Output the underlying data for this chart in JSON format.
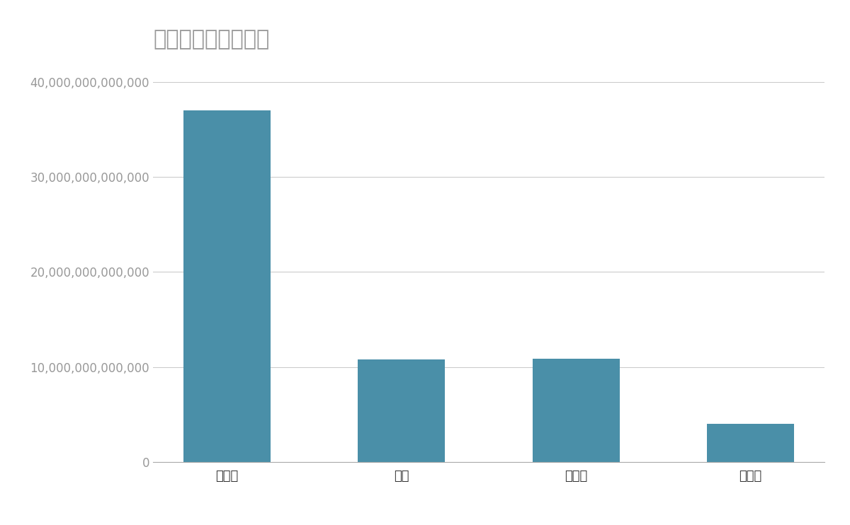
{
  "title": "競合含む年間売上高",
  "categories": [
    "トヨタ",
    "日産",
    "ホンダ",
    "スズキ"
  ],
  "values": [
    37000000000000,
    10800000000000,
    10900000000000,
    4000000000000
  ],
  "bar_color": "#4a8fa8",
  "background_color": "#ffffff",
  "title_color": "#999999",
  "tick_color": "#999999",
  "grid_color": "#cccccc",
  "ylim": [
    0,
    42000000000000
  ],
  "yticks": [
    0,
    10000000000000,
    20000000000000,
    30000000000000,
    40000000000000
  ],
  "title_fontsize": 22,
  "tick_fontsize": 12,
  "xtick_fontsize": 13
}
